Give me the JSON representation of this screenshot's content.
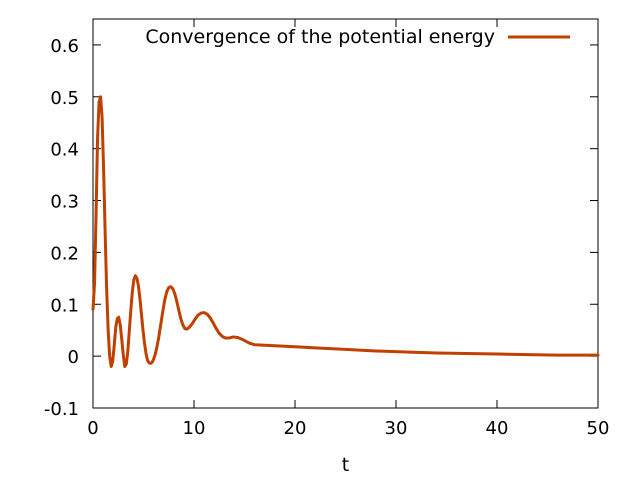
{
  "chart_data": {
    "type": "line",
    "title": "",
    "xlabel": "t",
    "ylabel": "",
    "xlim": [
      0,
      50
    ],
    "ylim": [
      -0.1,
      0.65
    ],
    "x_ticks": [
      "0",
      "10",
      "20",
      "30",
      "40",
      "50"
    ],
    "y_ticks": [
      "-0.1",
      "0",
      "0.1",
      "0.2",
      "0.3",
      "0.4",
      "0.5",
      "0.6"
    ],
    "x_tick_values": [
      0,
      10,
      20,
      30,
      40,
      50
    ],
    "y_tick_values": [
      -0.1,
      0,
      0.1,
      0.2,
      0.3,
      0.4,
      0.5,
      0.6
    ],
    "grid": false,
    "legend_position": "top",
    "series": [
      {
        "name": "Convergence of the potential energy",
        "color": "#c04000",
        "points": [
          [
            0.0,
            0.09
          ],
          [
            0.15,
            0.14
          ],
          [
            0.3,
            0.27
          ],
          [
            0.45,
            0.42
          ],
          [
            0.6,
            0.49
          ],
          [
            0.75,
            0.5
          ],
          [
            0.9,
            0.46
          ],
          [
            1.05,
            0.36
          ],
          [
            1.2,
            0.24
          ],
          [
            1.35,
            0.13
          ],
          [
            1.5,
            0.05
          ],
          [
            1.65,
            0.0
          ],
          [
            1.8,
            -0.02
          ],
          [
            1.95,
            -0.01
          ],
          [
            2.1,
            0.02
          ],
          [
            2.25,
            0.055
          ],
          [
            2.4,
            0.072
          ],
          [
            2.55,
            0.075
          ],
          [
            2.7,
            0.06
          ],
          [
            2.85,
            0.032
          ],
          [
            3.0,
            0.002
          ],
          [
            3.15,
            -0.02
          ],
          [
            3.3,
            -0.015
          ],
          [
            3.45,
            0.01
          ],
          [
            3.6,
            0.05
          ],
          [
            3.75,
            0.09
          ],
          [
            3.9,
            0.125
          ],
          [
            4.05,
            0.148
          ],
          [
            4.2,
            0.155
          ],
          [
            4.35,
            0.15
          ],
          [
            4.5,
            0.135
          ],
          [
            4.65,
            0.11
          ],
          [
            4.8,
            0.08
          ],
          [
            4.95,
            0.05
          ],
          [
            5.1,
            0.025
          ],
          [
            5.25,
            0.005
          ],
          [
            5.4,
            -0.008
          ],
          [
            5.55,
            -0.013
          ],
          [
            5.7,
            -0.014
          ],
          [
            5.85,
            -0.012
          ],
          [
            6.0,
            -0.006
          ],
          [
            6.15,
            0.003
          ],
          [
            6.3,
            0.015
          ],
          [
            6.5,
            0.035
          ],
          [
            6.7,
            0.06
          ],
          [
            6.9,
            0.085
          ],
          [
            7.1,
            0.108
          ],
          [
            7.3,
            0.124
          ],
          [
            7.5,
            0.132
          ],
          [
            7.7,
            0.134
          ],
          [
            7.9,
            0.13
          ],
          [
            8.1,
            0.12
          ],
          [
            8.3,
            0.105
          ],
          [
            8.5,
            0.088
          ],
          [
            8.7,
            0.072
          ],
          [
            8.9,
            0.06
          ],
          [
            9.1,
            0.053
          ],
          [
            9.3,
            0.052
          ],
          [
            9.5,
            0.055
          ],
          [
            9.8,
            0.062
          ],
          [
            10.1,
            0.071
          ],
          [
            10.4,
            0.079
          ],
          [
            10.7,
            0.083
          ],
          [
            11.0,
            0.084
          ],
          [
            11.3,
            0.081
          ],
          [
            11.6,
            0.074
          ],
          [
            11.9,
            0.064
          ],
          [
            12.2,
            0.053
          ],
          [
            12.5,
            0.044
          ],
          [
            12.8,
            0.038
          ],
          [
            13.1,
            0.035
          ],
          [
            13.5,
            0.035
          ],
          [
            13.9,
            0.037
          ],
          [
            14.3,
            0.036
          ],
          [
            14.7,
            0.033
          ],
          [
            15.1,
            0.029
          ],
          [
            15.5,
            0.025
          ],
          [
            16.0,
            0.022
          ],
          [
            17.0,
            0.021
          ],
          [
            18.0,
            0.02
          ],
          [
            20.0,
            0.018
          ],
          [
            22.0,
            0.016
          ],
          [
            25.0,
            0.013
          ],
          [
            28.0,
            0.01
          ],
          [
            31.0,
            0.008
          ],
          [
            34.0,
            0.006
          ],
          [
            37.0,
            0.005
          ],
          [
            40.0,
            0.004
          ],
          [
            43.0,
            0.003
          ],
          [
            46.0,
            0.002
          ],
          [
            50.0,
            0.002
          ]
        ]
      }
    ]
  }
}
